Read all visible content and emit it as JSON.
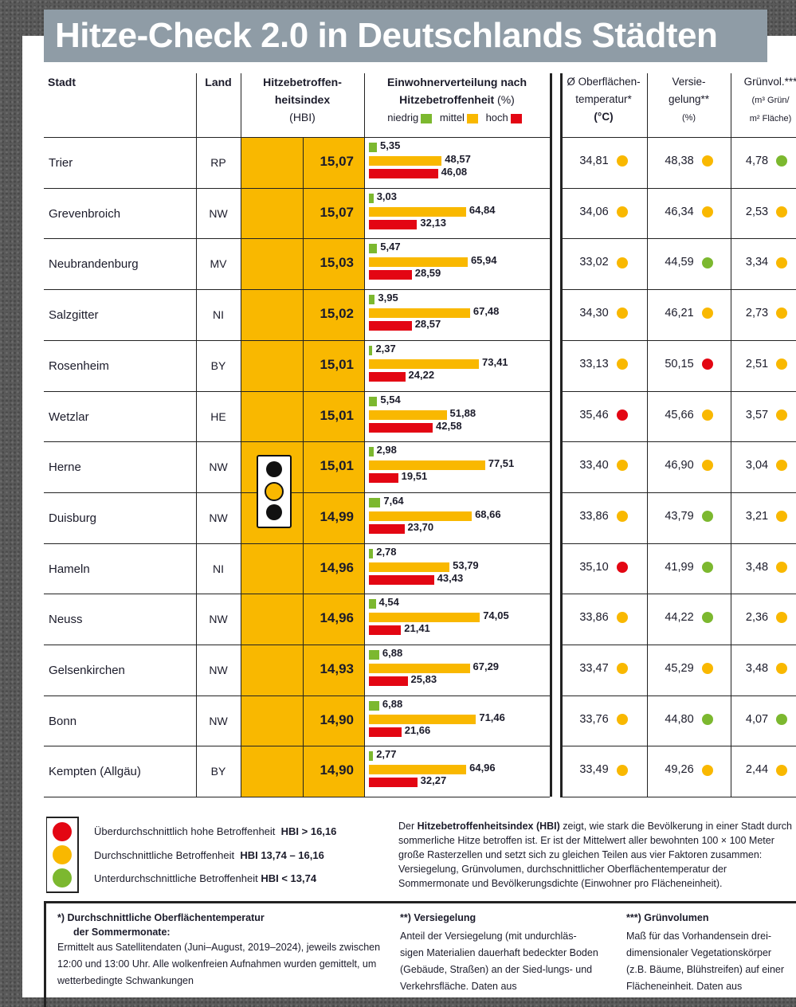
{
  "title": "Hitze-Check 2.0 in Deutschlands Städten",
  "colors": {
    "green": "#7cb82f",
    "yellow": "#f9b800",
    "red": "#e30613",
    "title_bg": "#8f9ca6"
  },
  "headers": {
    "stadt": "Stadt",
    "land": "Land",
    "hbi_1": "Hitzebetroffen-",
    "hbi_2": "heitsindex",
    "hbi_3": "(HBI)",
    "einw_1": "Einwohnerverteilung nach",
    "einw_2": "Hitzebetroffenheit",
    "einw_unit": "(%)",
    "niedrig": "niedrig",
    "mittel": "mittel",
    "hoch": "hoch",
    "temp_1": "Ø Oberflächen-",
    "temp_2": "temperatur*",
    "temp_3": "(°C)",
    "vers_1": "Versie-",
    "vers_2": "gelung**",
    "vers_3": "(%)",
    "gruen_1": "Grünvol.***",
    "gruen_2": "(m³ Grün/",
    "gruen_3": "m² Fläche)"
  },
  "rows": [
    {
      "stadt": "Trier",
      "land": "RP",
      "hbi": "15,07",
      "niedrig": 5.35,
      "mittel": 48.57,
      "hoch": 46.08,
      "temp": "34,81",
      "temp_c": "yellow",
      "vers": "48,38",
      "vers_c": "yellow",
      "gruen": "4,78",
      "gruen_c": "green"
    },
    {
      "stadt": "Grevenbroich",
      "land": "NW",
      "hbi": "15,07",
      "niedrig": 3.03,
      "mittel": 64.84,
      "hoch": 32.13,
      "temp": "34,06",
      "temp_c": "yellow",
      "vers": "46,34",
      "vers_c": "yellow",
      "gruen": "2,53",
      "gruen_c": "yellow"
    },
    {
      "stadt": "Neubrandenburg",
      "land": "MV",
      "hbi": "15,03",
      "niedrig": 5.47,
      "mittel": 65.94,
      "hoch": 28.59,
      "temp": "33,02",
      "temp_c": "yellow",
      "vers": "44,59",
      "vers_c": "green",
      "gruen": "3,34",
      "gruen_c": "yellow"
    },
    {
      "stadt": "Salzgitter",
      "land": "NI",
      "hbi": "15,02",
      "niedrig": 3.95,
      "mittel": 67.48,
      "hoch": 28.57,
      "temp": "34,30",
      "temp_c": "yellow",
      "vers": "46,21",
      "vers_c": "yellow",
      "gruen": "2,73",
      "gruen_c": "yellow"
    },
    {
      "stadt": "Rosenheim",
      "land": "BY",
      "hbi": "15,01",
      "niedrig": 2.37,
      "mittel": 73.41,
      "hoch": 24.22,
      "temp": "33,13",
      "temp_c": "yellow",
      "vers": "50,15",
      "vers_c": "red",
      "gruen": "2,51",
      "gruen_c": "yellow"
    },
    {
      "stadt": "Wetzlar",
      "land": "HE",
      "hbi": "15,01",
      "niedrig": 5.54,
      "mittel": 51.88,
      "hoch": 42.58,
      "temp": "35,46",
      "temp_c": "red",
      "vers": "45,66",
      "vers_c": "yellow",
      "gruen": "3,57",
      "gruen_c": "yellow"
    },
    {
      "stadt": "Herne",
      "land": "NW",
      "hbi": "15,01",
      "niedrig": 2.98,
      "mittel": 77.51,
      "hoch": 19.51,
      "temp": "33,40",
      "temp_c": "yellow",
      "vers": "46,90",
      "vers_c": "yellow",
      "gruen": "3,04",
      "gruen_c": "yellow"
    },
    {
      "stadt": "Duisburg",
      "land": "NW",
      "hbi": "14,99",
      "niedrig": 7.64,
      "mittel": 68.66,
      "hoch": 23.7,
      "temp": "33,86",
      "temp_c": "yellow",
      "vers": "43,79",
      "vers_c": "green",
      "gruen": "3,21",
      "gruen_c": "yellow"
    },
    {
      "stadt": "Hameln",
      "land": "NI",
      "hbi": "14,96",
      "niedrig": 2.78,
      "mittel": 53.79,
      "hoch": 43.43,
      "temp": "35,10",
      "temp_c": "red",
      "vers": "41,99",
      "vers_c": "green",
      "gruen": "3,48",
      "gruen_c": "yellow"
    },
    {
      "stadt": "Neuss",
      "land": "NW",
      "hbi": "14,96",
      "niedrig": 4.54,
      "mittel": 74.05,
      "hoch": 21.41,
      "temp": "33,86",
      "temp_c": "yellow",
      "vers": "44,22",
      "vers_c": "green",
      "gruen": "2,36",
      "gruen_c": "yellow"
    },
    {
      "stadt": "Gelsenkirchen",
      "land": "NW",
      "hbi": "14,93",
      "niedrig": 6.88,
      "mittel": 67.29,
      "hoch": 25.83,
      "temp": "33,47",
      "temp_c": "yellow",
      "vers": "45,29",
      "vers_c": "yellow",
      "gruen": "3,48",
      "gruen_c": "yellow"
    },
    {
      "stadt": "Bonn",
      "land": "NW",
      "hbi": "14,90",
      "niedrig": 6.88,
      "mittel": 71.46,
      "hoch": 21.66,
      "temp": "33,76",
      "temp_c": "yellow",
      "vers": "44,80",
      "vers_c": "green",
      "gruen": "4,07",
      "gruen_c": "green"
    },
    {
      "stadt": "Kempten (Allgäu)",
      "land": "BY",
      "hbi": "14,90",
      "niedrig": 2.77,
      "mittel": 64.96,
      "hoch": 32.27,
      "temp": "33,49",
      "temp_c": "yellow",
      "vers": "49,26",
      "vers_c": "yellow",
      "gruen": "2,44",
      "gruen_c": "yellow"
    }
  ],
  "legend": [
    {
      "text": "Überdurchschnittlich hohe Betroffenheit",
      "range": "HBI > 16,16",
      "color": "red"
    },
    {
      "text": "Durchschnittliche Betroffenheit",
      "range": "HBI 13,74 – 16,16",
      "color": "yellow"
    },
    {
      "text": "Unterdurchschnittliche Betroffenheit",
      "range": "HBI < 13,74",
      "color": "green"
    }
  ],
  "explanation": {
    "pre": "Der ",
    "bold": "Hitzebetroffenheitsindex (HBI)",
    "post": " zeigt, wie stark die Bevölkerung in einer Stadt durch sommerliche Hitze betroffen ist. Er ist der Mittelwert aller bewohnten 100 × 100 Meter große Rasterzellen und setzt sich zu gleichen Teilen aus vier Faktoren zusammen: Versiegelung, Grünvolumen, durchschnittlicher Oberflächentemperatur der Sommermonate und Bevölkerungsdichte (Einwohner pro Flächeneinheit)."
  },
  "footnotes": [
    {
      "title_1": "*) Durchschnittliche Oberflächentemperatur",
      "title_2": "der Sommermonate:",
      "text": "Ermittelt aus Satellitendaten (Juni–August, 2019–2024), jeweils zwischen 12:00 und 13:00 Uhr. Alle wolkenfreien Aufnahmen wurden gemittelt, um wetterbedingte Schwankungen"
    },
    {
      "title_1": "**) Versiegelung",
      "text": "Anteil der Versiegelung (mit undurchläs-sigen Materialien dauerhaft bedeckter Boden (Gebäude, Straßen) an der Sied-lungs- und Verkehrsfläche. Daten aus"
    },
    {
      "title_1": "***) Grünvolumen",
      "text": "Maß für das Vorhandensein drei-dimensionaler Vegetationskörper (z.B. Bäume, Blühstreifen) auf einer Flächeneinheit. Daten aus"
    }
  ]
}
